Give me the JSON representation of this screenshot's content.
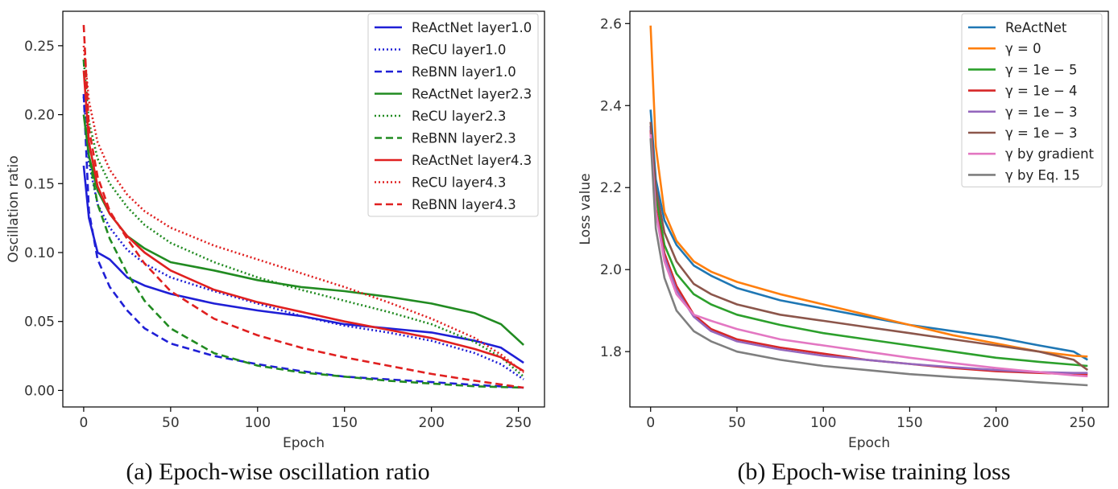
{
  "chart_data": [
    {
      "type": "line",
      "title": "",
      "caption": "(a) Epoch-wise oscillation ratio",
      "xlabel": "Epoch",
      "ylabel": "Oscillation ratio",
      "xlim": [
        -12,
        265
      ],
      "ylim": [
        -0.012,
        0.275
      ],
      "xticks": [
        0,
        50,
        100,
        150,
        200,
        250
      ],
      "yticks": [
        0.0,
        0.05,
        0.1,
        0.15,
        0.2,
        0.25
      ],
      "ytick_labels": [
        "0.00",
        "0.05",
        "0.10",
        "0.15",
        "0.20",
        "0.25"
      ],
      "grid": false,
      "legend_position": "top-right",
      "series": [
        {
          "name": "ReActNet layer1.0",
          "color": "#1f1fd6",
          "dash": "solid",
          "x": [
            0,
            3,
            8,
            15,
            25,
            35,
            50,
            75,
            100,
            125,
            150,
            175,
            200,
            225,
            240,
            253
          ],
          "y": [
            0.163,
            0.125,
            0.1,
            0.095,
            0.082,
            0.076,
            0.07,
            0.063,
            0.058,
            0.054,
            0.048,
            0.045,
            0.042,
            0.036,
            0.031,
            0.02
          ]
        },
        {
          "name": "ReCU layer1.0",
          "color": "#1f1fd6",
          "dash": "dotted",
          "x": [
            0,
            3,
            8,
            15,
            25,
            35,
            50,
            75,
            100,
            125,
            150,
            175,
            200,
            225,
            240,
            253
          ],
          "y": [
            0.213,
            0.165,
            0.135,
            0.118,
            0.102,
            0.092,
            0.082,
            0.072,
            0.063,
            0.054,
            0.047,
            0.042,
            0.036,
            0.027,
            0.019,
            0.008
          ]
        },
        {
          "name": "ReBNN layer1.0",
          "color": "#1f1fd6",
          "dash": "dashed",
          "x": [
            0,
            3,
            8,
            15,
            25,
            35,
            50,
            75,
            100,
            125,
            150,
            175,
            200,
            225,
            253
          ],
          "y": [
            0.215,
            0.13,
            0.095,
            0.075,
            0.058,
            0.045,
            0.034,
            0.025,
            0.019,
            0.014,
            0.01,
            0.008,
            0.006,
            0.004,
            0.002
          ]
        },
        {
          "name": "ReActNet layer2.3",
          "color": "#218b21",
          "dash": "solid",
          "x": [
            0,
            3,
            8,
            15,
            25,
            35,
            50,
            75,
            100,
            125,
            150,
            175,
            200,
            225,
            240,
            253
          ],
          "y": [
            0.2,
            0.17,
            0.145,
            0.128,
            0.112,
            0.103,
            0.093,
            0.087,
            0.08,
            0.075,
            0.072,
            0.068,
            0.063,
            0.056,
            0.048,
            0.033
          ]
        },
        {
          "name": "ReCU layer2.3",
          "color": "#218b21",
          "dash": "dotted",
          "x": [
            0,
            3,
            8,
            15,
            25,
            35,
            50,
            75,
            100,
            125,
            150,
            175,
            200,
            225,
            240,
            253
          ],
          "y": [
            0.24,
            0.195,
            0.168,
            0.15,
            0.133,
            0.12,
            0.107,
            0.093,
            0.082,
            0.073,
            0.065,
            0.057,
            0.048,
            0.035,
            0.024,
            0.01
          ]
        },
        {
          "name": "ReBNN layer2.3",
          "color": "#218b21",
          "dash": "dashed",
          "x": [
            0,
            3,
            8,
            15,
            25,
            35,
            50,
            75,
            100,
            125,
            150,
            175,
            200,
            225,
            253
          ],
          "y": [
            0.24,
            0.17,
            0.135,
            0.11,
            0.085,
            0.065,
            0.045,
            0.027,
            0.018,
            0.013,
            0.01,
            0.007,
            0.005,
            0.003,
            0.002
          ]
        },
        {
          "name": "ReActNet layer4.3",
          "color": "#e02020",
          "dash": "solid",
          "x": [
            0,
            3,
            8,
            15,
            25,
            35,
            50,
            75,
            100,
            125,
            150,
            175,
            200,
            225,
            240,
            253
          ],
          "y": [
            0.232,
            0.18,
            0.148,
            0.128,
            0.112,
            0.1,
            0.087,
            0.073,
            0.064,
            0.057,
            0.05,
            0.044,
            0.038,
            0.03,
            0.024,
            0.014
          ]
        },
        {
          "name": "ReCU layer4.3",
          "color": "#e02020",
          "dash": "dotted",
          "x": [
            0,
            3,
            8,
            15,
            25,
            35,
            50,
            75,
            100,
            125,
            150,
            175,
            200,
            225,
            240,
            253
          ],
          "y": [
            0.25,
            0.21,
            0.18,
            0.16,
            0.142,
            0.13,
            0.118,
            0.105,
            0.095,
            0.085,
            0.075,
            0.064,
            0.052,
            0.038,
            0.026,
            0.013
          ]
        },
        {
          "name": "ReBNN layer4.3",
          "color": "#e02020",
          "dash": "dashed",
          "x": [
            0,
            3,
            8,
            15,
            25,
            35,
            50,
            75,
            100,
            125,
            150,
            175,
            200,
            225,
            253
          ],
          "y": [
            0.265,
            0.19,
            0.155,
            0.13,
            0.11,
            0.092,
            0.072,
            0.052,
            0.04,
            0.031,
            0.024,
            0.018,
            0.012,
            0.007,
            0.002
          ]
        }
      ]
    },
    {
      "type": "line",
      "title": "",
      "caption": "(b) Epoch-wise training loss",
      "xlabel": "Epoch",
      "ylabel": "Loss value",
      "xlim": [
        -12,
        265
      ],
      "ylim": [
        1.665,
        2.63
      ],
      "xticks": [
        0,
        50,
        100,
        150,
        200,
        250
      ],
      "yticks": [
        1.8,
        2.0,
        2.2,
        2.4,
        2.6
      ],
      "ytick_labels": [
        "1.8",
        "2.0",
        "2.2",
        "2.4",
        "2.6"
      ],
      "grid": false,
      "legend_position": "top-right",
      "series": [
        {
          "name": "ReActNet",
          "color": "#1f77b4",
          "dash": "solid",
          "x": [
            0,
            3,
            8,
            15,
            25,
            35,
            50,
            75,
            100,
            125,
            150,
            175,
            200,
            225,
            245,
            253
          ],
          "y": [
            2.39,
            2.22,
            2.12,
            2.06,
            2.01,
            1.985,
            1.955,
            1.925,
            1.905,
            1.885,
            1.865,
            1.85,
            1.835,
            1.815,
            1.8,
            1.78
          ]
        },
        {
          "name": "γ = 0",
          "color": "#ff7f0e",
          "dash": "solid",
          "x": [
            0,
            3,
            8,
            15,
            25,
            35,
            50,
            75,
            100,
            125,
            150,
            175,
            200,
            225,
            245,
            253
          ],
          "y": [
            2.595,
            2.3,
            2.14,
            2.07,
            2.02,
            1.995,
            1.97,
            1.94,
            1.915,
            1.89,
            1.865,
            1.84,
            1.82,
            1.8,
            1.79,
            1.788
          ]
        },
        {
          "name": "γ = 1e − 5",
          "color": "#2ca02c",
          "dash": "solid",
          "x": [
            0,
            3,
            8,
            15,
            25,
            35,
            50,
            75,
            100,
            125,
            150,
            175,
            200,
            225,
            245,
            253
          ],
          "y": [
            2.35,
            2.18,
            2.06,
            1.99,
            1.94,
            1.915,
            1.89,
            1.865,
            1.845,
            1.83,
            1.815,
            1.8,
            1.785,
            1.775,
            1.768,
            1.765
          ]
        },
        {
          "name": "γ = 1e − 4",
          "color": "#d62728",
          "dash": "solid",
          "x": [
            0,
            3,
            8,
            15,
            25,
            35,
            50,
            75,
            100,
            125,
            150,
            175,
            200,
            225,
            245,
            253
          ],
          "y": [
            2.34,
            2.15,
            2.04,
            1.96,
            1.89,
            1.855,
            1.83,
            1.81,
            1.795,
            1.78,
            1.77,
            1.76,
            1.752,
            1.748,
            1.745,
            1.745
          ]
        },
        {
          "name": "γ = 1e − 3",
          "color": "#9467bd",
          "dash": "solid",
          "x": [
            0,
            3,
            8,
            15,
            25,
            35,
            50,
            75,
            100,
            125,
            150,
            175,
            200,
            225,
            245,
            253
          ],
          "y": [
            2.35,
            2.14,
            2.03,
            1.95,
            1.885,
            1.85,
            1.825,
            1.805,
            1.79,
            1.78,
            1.77,
            1.762,
            1.755,
            1.75,
            1.748,
            1.748
          ]
        },
        {
          "name": "γ = 1e − 3",
          "color": "#8c564b",
          "dash": "solid",
          "x": [
            0,
            3,
            8,
            15,
            25,
            35,
            50,
            75,
            100,
            125,
            150,
            175,
            200,
            225,
            245,
            253
          ],
          "y": [
            2.36,
            2.2,
            2.09,
            2.02,
            1.965,
            1.94,
            1.915,
            1.89,
            1.875,
            1.86,
            1.845,
            1.83,
            1.815,
            1.8,
            1.78,
            1.755
          ]
        },
        {
          "name": "γ by gradient",
          "color": "#e377c2",
          "dash": "solid",
          "x": [
            0,
            3,
            8,
            15,
            25,
            35,
            50,
            75,
            100,
            125,
            150,
            175,
            200,
            225,
            245,
            253
          ],
          "y": [
            2.33,
            2.14,
            2.02,
            1.94,
            1.89,
            1.875,
            1.855,
            1.83,
            1.815,
            1.8,
            1.785,
            1.772,
            1.76,
            1.75,
            1.742,
            1.74
          ]
        },
        {
          "name": "γ by Eq. 15",
          "color": "#7f7f7f",
          "dash": "solid",
          "x": [
            0,
            3,
            8,
            15,
            25,
            35,
            50,
            75,
            100,
            125,
            150,
            175,
            200,
            225,
            245,
            253
          ],
          "y": [
            2.32,
            2.1,
            1.98,
            1.9,
            1.85,
            1.825,
            1.8,
            1.78,
            1.765,
            1.755,
            1.745,
            1.738,
            1.732,
            1.725,
            1.72,
            1.718
          ]
        }
      ]
    }
  ]
}
